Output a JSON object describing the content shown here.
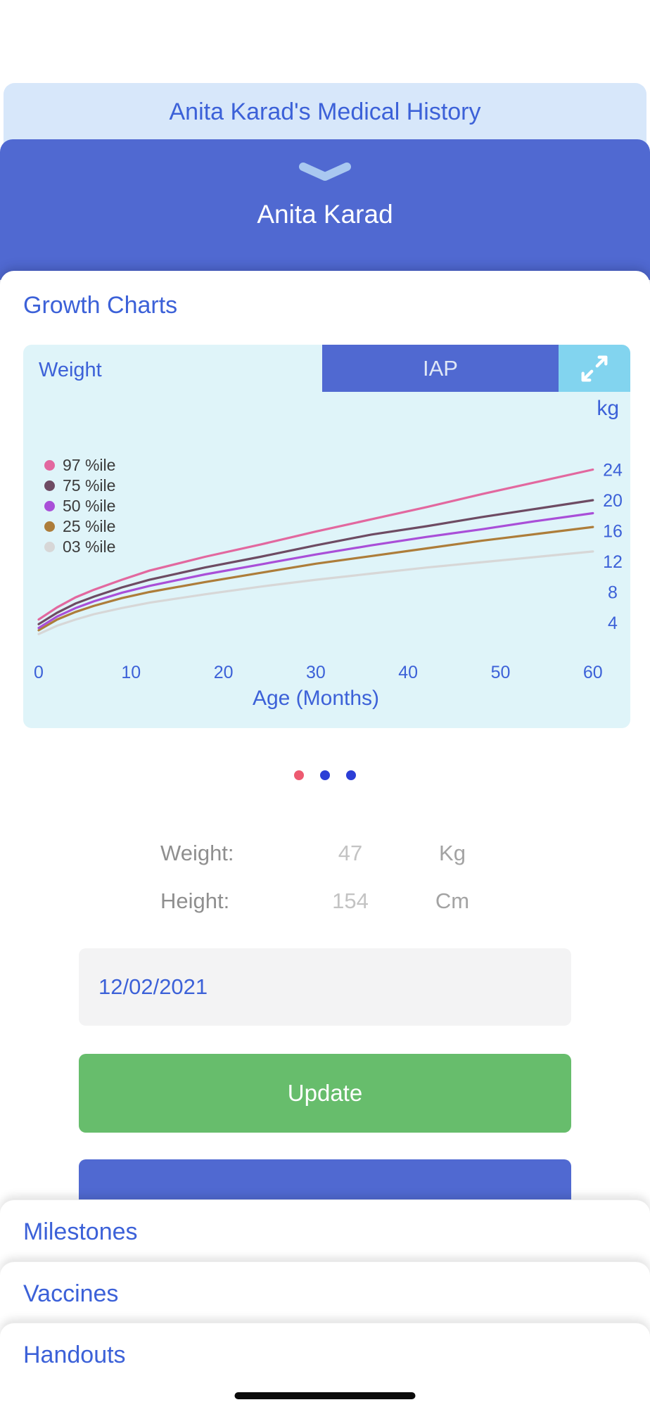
{
  "page": {
    "modal_title": "Anita Karad's Medical History",
    "patient_name": "Anita Karad",
    "section_title": "Growth Charts"
  },
  "chart": {
    "metric_label": "Weight",
    "standard_button": "IAP",
    "unit_label": "kg",
    "x_axis_title": "Age (Months)"
  },
  "chart_data": {
    "type": "line",
    "title": "Weight",
    "xlabel": "Age (Months)",
    "ylabel": "kg",
    "x": [
      0,
      2,
      4,
      6,
      9,
      12,
      18,
      24,
      30,
      36,
      42,
      48,
      54,
      60
    ],
    "xticks": [
      0,
      10,
      20,
      30,
      40,
      50,
      60
    ],
    "yticks": [
      4,
      8,
      12,
      16,
      20,
      24
    ],
    "xlim": [
      0,
      60
    ],
    "ylim": [
      2,
      26
    ],
    "grid": false,
    "legend_position": "upper-left",
    "series": [
      {
        "name": "97 %ile",
        "color": "#e2689f",
        "values": [
          4.4,
          6.0,
          7.3,
          8.3,
          9.6,
          10.8,
          12.6,
          14.2,
          15.9,
          17.5,
          19.1,
          20.8,
          22.4,
          24.0
        ]
      },
      {
        "name": "75 %ile",
        "color": "#6e4b63",
        "values": [
          3.8,
          5.3,
          6.5,
          7.4,
          8.6,
          9.6,
          11.2,
          12.6,
          14.1,
          15.5,
          16.6,
          17.8,
          18.9,
          20.0
        ]
      },
      {
        "name": "50 %ile",
        "color": "#a94fd8",
        "values": [
          3.3,
          4.8,
          5.9,
          6.8,
          7.9,
          8.8,
          10.3,
          11.6,
          12.9,
          14.1,
          15.2,
          16.2,
          17.3,
          18.3
        ]
      },
      {
        "name": "25 %ile",
        "color": "#ad7d3a",
        "values": [
          3.0,
          4.4,
          5.4,
          6.2,
          7.2,
          8.0,
          9.3,
          10.5,
          11.7,
          12.7,
          13.7,
          14.7,
          15.6,
          16.5
        ]
      },
      {
        "name": "03 %ile",
        "color": "#d7d7d7",
        "values": [
          2.5,
          3.6,
          4.4,
          5.1,
          5.9,
          6.6,
          7.7,
          8.7,
          9.6,
          10.4,
          11.2,
          11.9,
          12.6,
          13.3
        ]
      }
    ]
  },
  "pagination": {
    "dots": [
      {
        "color": "#ed5a70"
      },
      {
        "color": "#2c3ed6"
      },
      {
        "color": "#2c3ed6"
      }
    ]
  },
  "measurements": {
    "weight_label": "Weight:",
    "weight_value": "47",
    "weight_unit": "Kg",
    "height_label": "Height:",
    "height_value": "154",
    "height_unit": "Cm"
  },
  "form": {
    "date_value": "12/02/2021",
    "update_button_label": "Update"
  },
  "sheets": [
    {
      "label": "Milestones"
    },
    {
      "label": "Vaccines"
    },
    {
      "label": "Handouts"
    }
  ],
  "colors": {
    "accent_blue": "#5069d1",
    "text_blue": "#3c61d8",
    "light_blue_header": "#d7e7fa",
    "chart_background": "#dff4f9",
    "expand_button_background": "#82d4ef",
    "update_green": "#67bd6c"
  }
}
